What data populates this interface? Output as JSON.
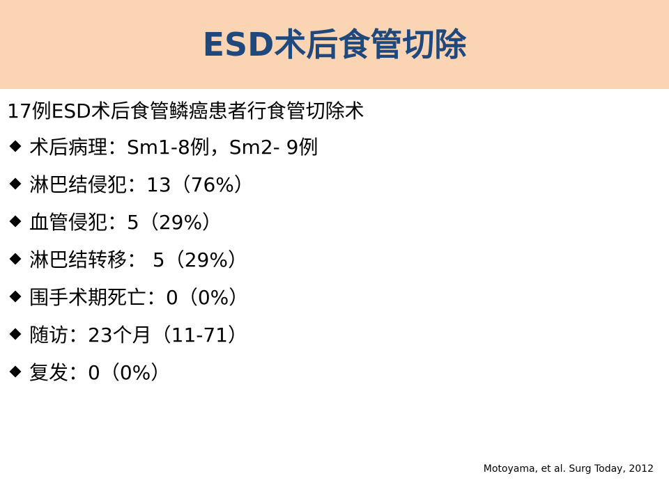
{
  "header": {
    "title": "ESD术后食管切除"
  },
  "body": {
    "intro": "17例ESD术后食管鳞癌患者行食管切除术",
    "items": [
      "术后病理：Sm1-8例，Sm2- 9例",
      "淋巴结侵犯：13（76%）",
      "血管侵犯：5（29%）",
      "淋巴结转移： 5（29%）",
      "围手术期死亡：0（0%）",
      "随访：23个月（11-71）",
      "复发：0（0%）"
    ]
  },
  "footer": {
    "citation": "Motoyama, et al. Surg Today, 2012"
  }
}
